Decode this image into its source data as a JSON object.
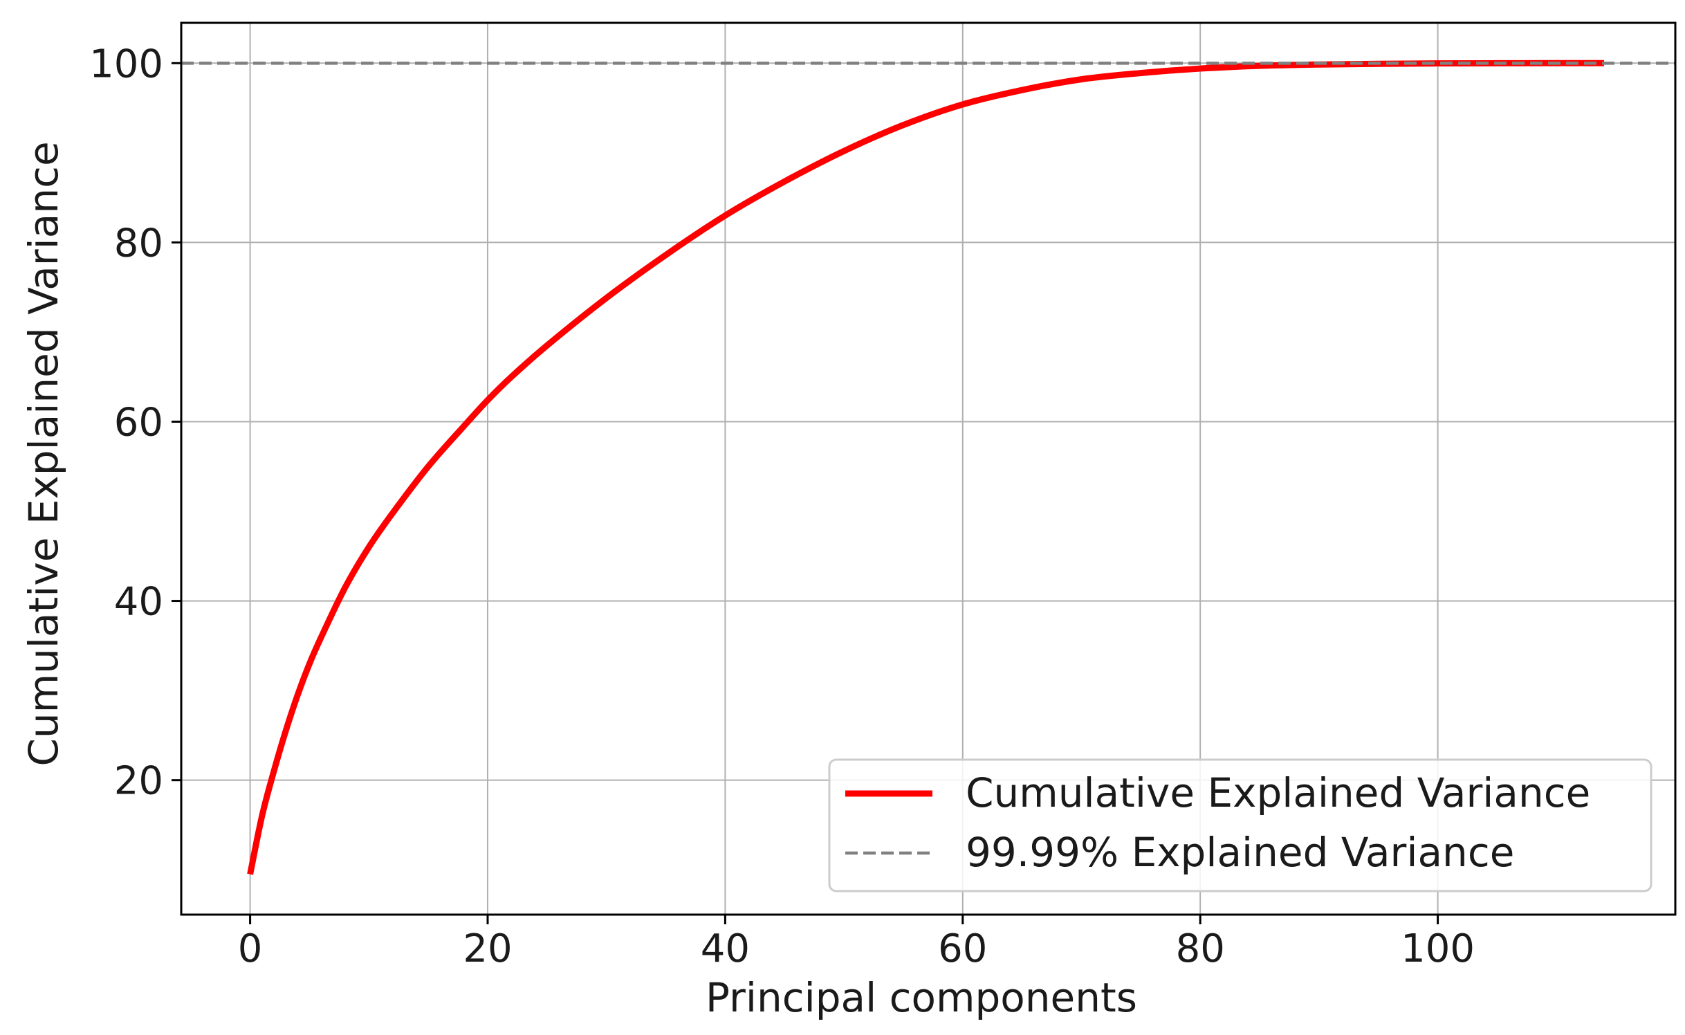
{
  "chart_data": {
    "type": "line",
    "title": "",
    "xlabel": "Principal components",
    "ylabel": "Cumulative Explained Variance",
    "xlim": [
      -5.8,
      120
    ],
    "ylim": [
      5,
      104.5
    ],
    "xticks": [
      0,
      20,
      40,
      60,
      80,
      100
    ],
    "yticks": [
      20,
      40,
      60,
      80,
      100
    ],
    "grid": true,
    "legend_position": "bottom-right",
    "series": [
      {
        "name": "Cumulative Explained Variance",
        "style": "solid",
        "color": "#ff0000",
        "x": [
          0,
          1,
          2,
          3,
          4,
          5,
          6,
          8,
          10,
          12,
          15,
          18,
          20,
          22,
          25,
          30,
          35,
          40,
          45,
          50,
          55,
          60,
          65,
          70,
          75,
          80,
          85,
          90,
          95,
          100,
          105,
          110,
          114
        ],
        "y": [
          9.5,
          16.0,
          21.0,
          25.5,
          29.5,
          33.0,
          36.0,
          41.5,
          46.0,
          49.8,
          55.0,
          59.5,
          62.4,
          65.0,
          68.5,
          73.8,
          78.6,
          83.0,
          86.8,
          90.2,
          93.1,
          95.4,
          97.0,
          98.2,
          98.9,
          99.4,
          99.7,
          99.85,
          99.93,
          99.97,
          99.99,
          100.0,
          100.0
        ]
      },
      {
        "name": "99.99% Explained Variance",
        "style": "dashed",
        "color": "#808080",
        "y_constant": 99.99
      }
    ]
  }
}
